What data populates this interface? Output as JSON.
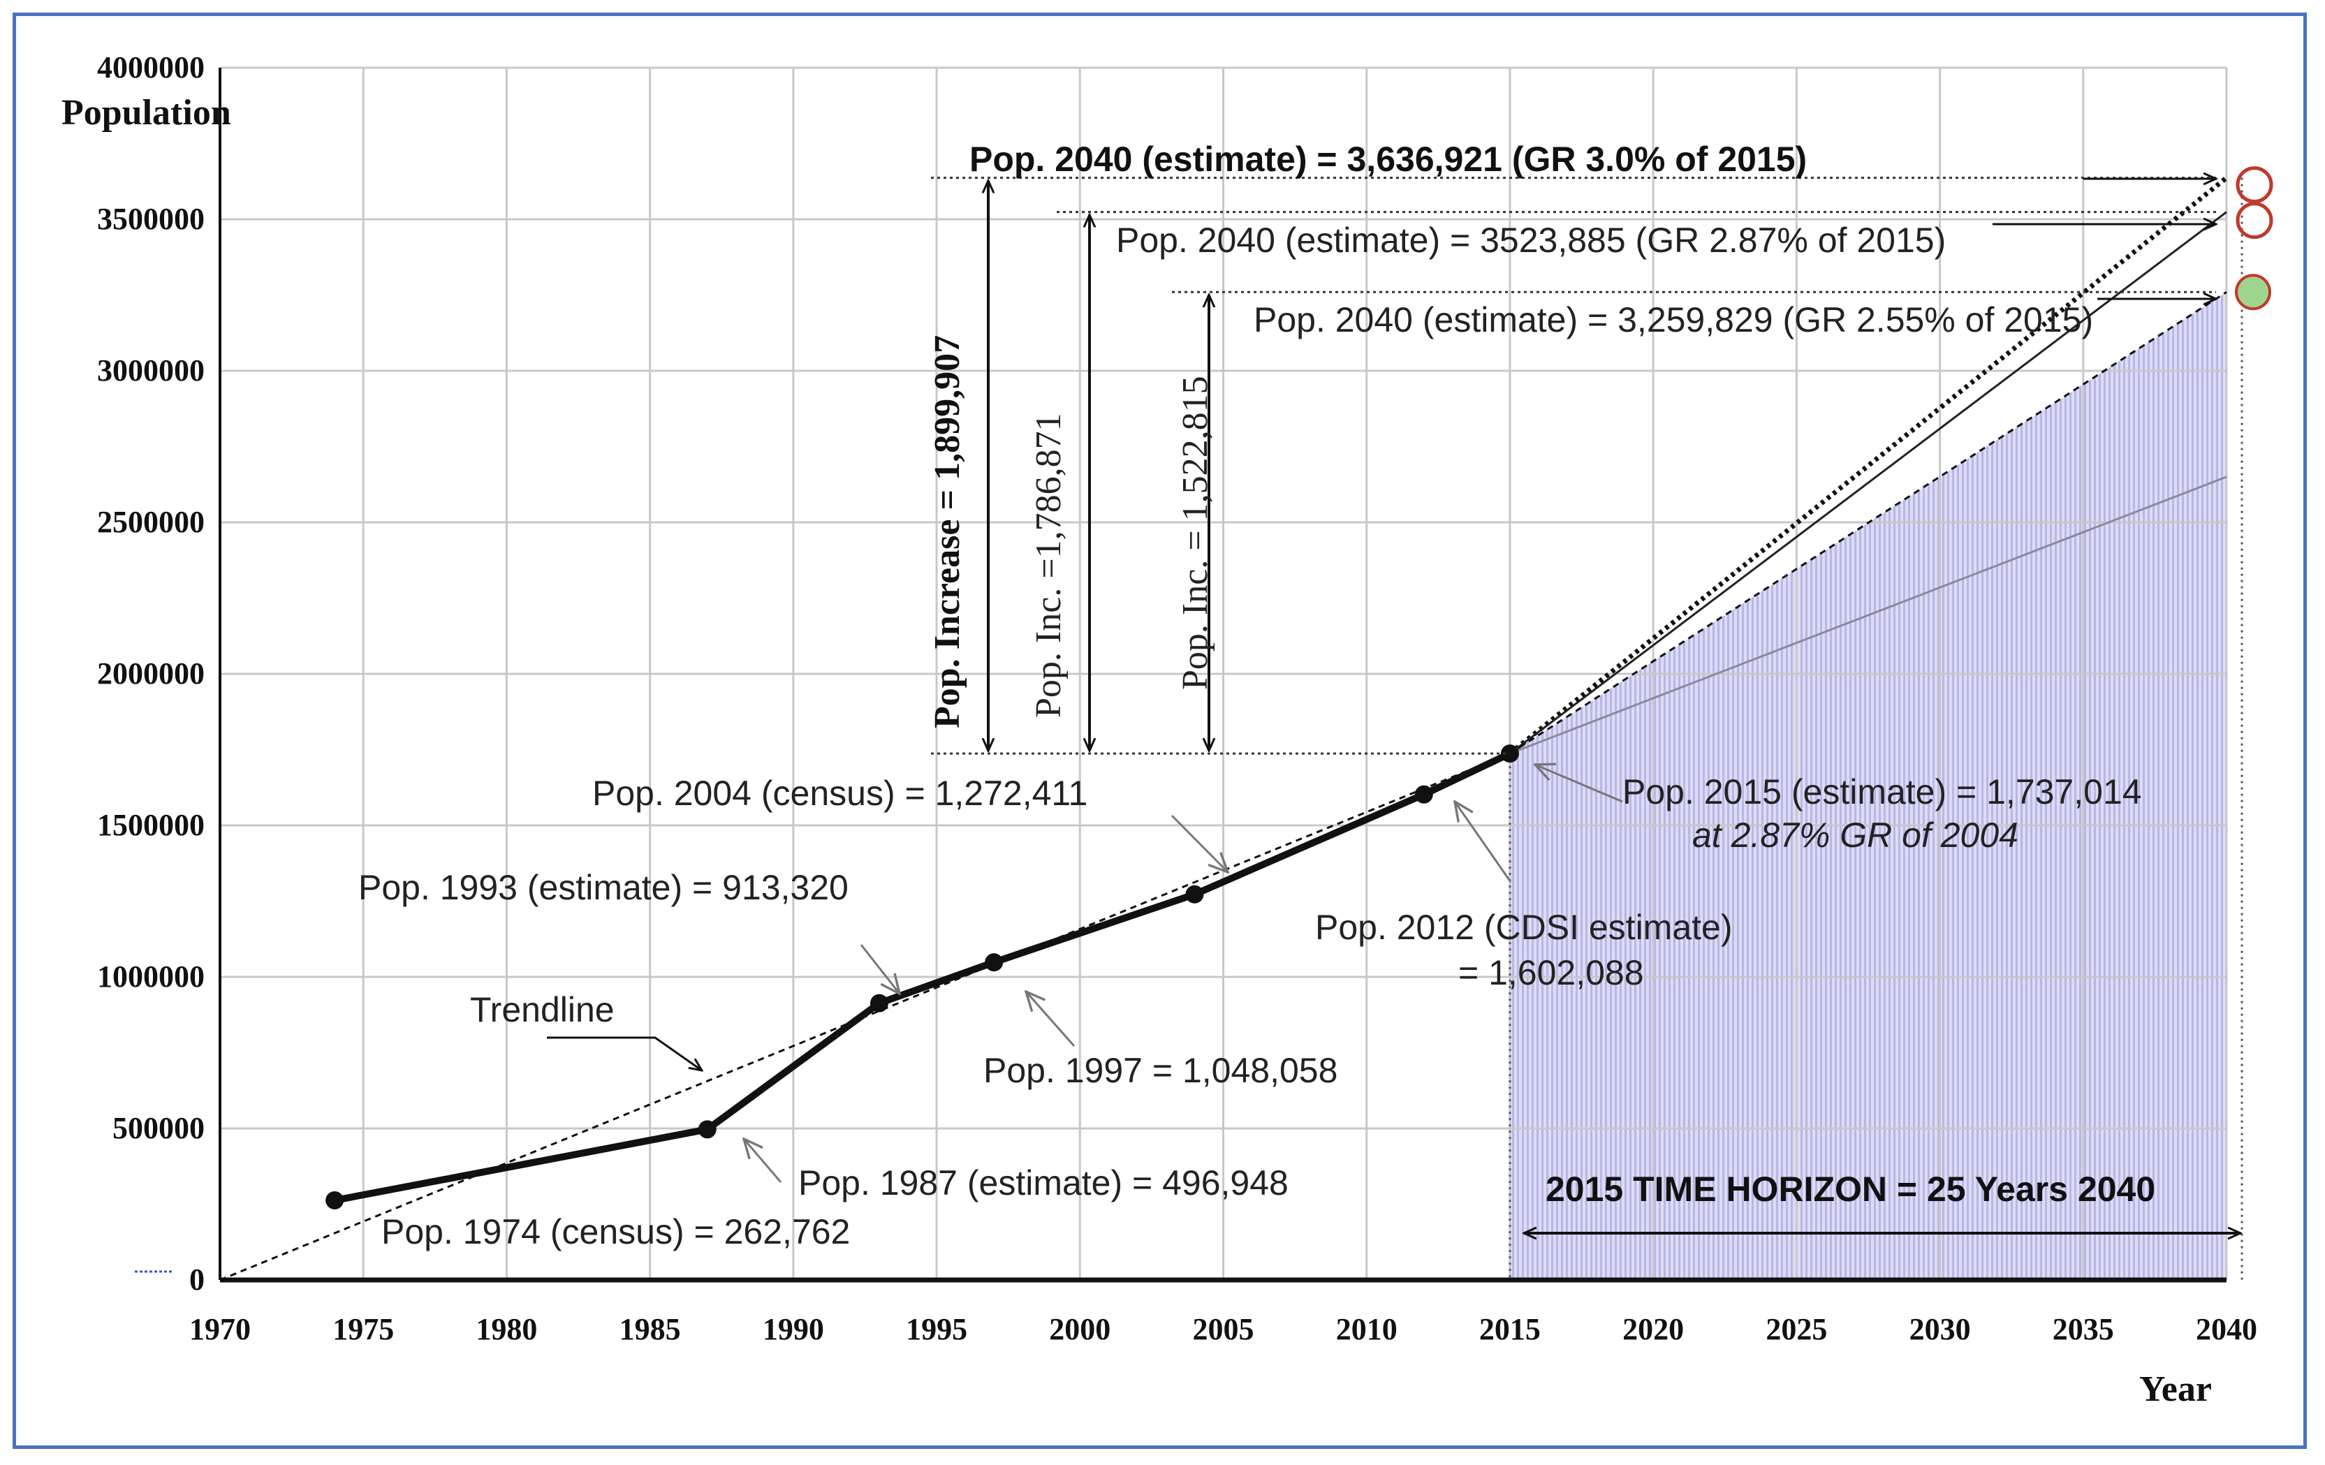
{
  "chart_data": {
    "type": "line",
    "title": "",
    "xlabel": "Year",
    "ylabel": "Population",
    "xlim": [
      1970,
      2040
    ],
    "ylim": [
      0,
      4000000
    ],
    "x_ticks": [
      "1970",
      "1975",
      "1980",
      "1985",
      "1990",
      "1995",
      "2000",
      "2005",
      "2010",
      "2015",
      "2020",
      "2025",
      "2030",
      "2035",
      "2040"
    ],
    "y_ticks": [
      "0",
      "500000",
      "1000000",
      "1500000",
      "2000000",
      "2500000",
      "3000000",
      "3500000",
      "4000000"
    ],
    "grid": true,
    "series": [
      {
        "name": "Population",
        "style": "solid",
        "x": [
          1974,
          1987,
          1993,
          1997,
          2004,
          2012,
          2015
        ],
        "y": [
          262762,
          496948,
          913320,
          1048058,
          1272411,
          1602088,
          1737014
        ]
      },
      {
        "name": "Trendline",
        "style": "dashed",
        "x": [
          1970,
          2015
        ],
        "y": [
          0,
          1737014
        ]
      },
      {
        "name": "GR 3.0% of 2015",
        "style": "dotted",
        "x": [
          2015,
          2040
        ],
        "y": [
          1737014,
          3636921
        ]
      },
      {
        "name": "GR 2.87% of 2015",
        "style": "thin",
        "x": [
          2015,
          2040
        ],
        "y": [
          1737014,
          3523885
        ]
      },
      {
        "name": "GR 2.55% of 2015",
        "style": "dashed",
        "x": [
          2015,
          2040
        ],
        "y": [
          1737014,
          3259829
        ]
      },
      {
        "name": "Trend extension",
        "style": "thin-grey",
        "x": [
          2015,
          2040
        ],
        "y": [
          1737014,
          2650000
        ]
      }
    ],
    "annotations": {
      "pop_1974": "Pop. 1974 (census) = 262,762",
      "pop_1987": "Pop. 1987 (estimate) = 496,948",
      "pop_1993": "Pop. 1993 (estimate) = 913,320",
      "pop_1997": "Pop. 1997 = 1,048,058",
      "pop_2004": "Pop. 2004 (census) = 1,272,411",
      "pop_2012_line1": "Pop. 2012 (CDSI estimate)",
      "pop_2012_line2": "= 1,602,088",
      "pop_2015_line1": "Pop. 2015 (estimate) = 1,737,014",
      "pop_2015_line2": "at 2.87% GR of 2004",
      "trendline": "Trendline",
      "est_30": "Pop. 2040 (estimate) = 3,636,921 (GR 3.0% of 2015)",
      "est_287": "Pop. 2040 (estimate) = 3523,885 (GR 2.87% of 2015)",
      "est_255": "Pop. 2040 (estimate) = 3,259,829 (GR 2.55% of 2015)",
      "inc_30": "Pop. Increase = 1,899,907",
      "inc_287": "Pop. Inc. =1,786,871",
      "inc_255": "Pop. Inc. = 1,522,815",
      "horizon": "2015  TIME HORIZON = 25 Years   2040"
    },
    "colors": {
      "frame": "#4a72c4",
      "shade": "#c9c9ef",
      "marker_red": "#c0392b",
      "marker_green": "#9fd48f",
      "series": "#111111"
    }
  }
}
